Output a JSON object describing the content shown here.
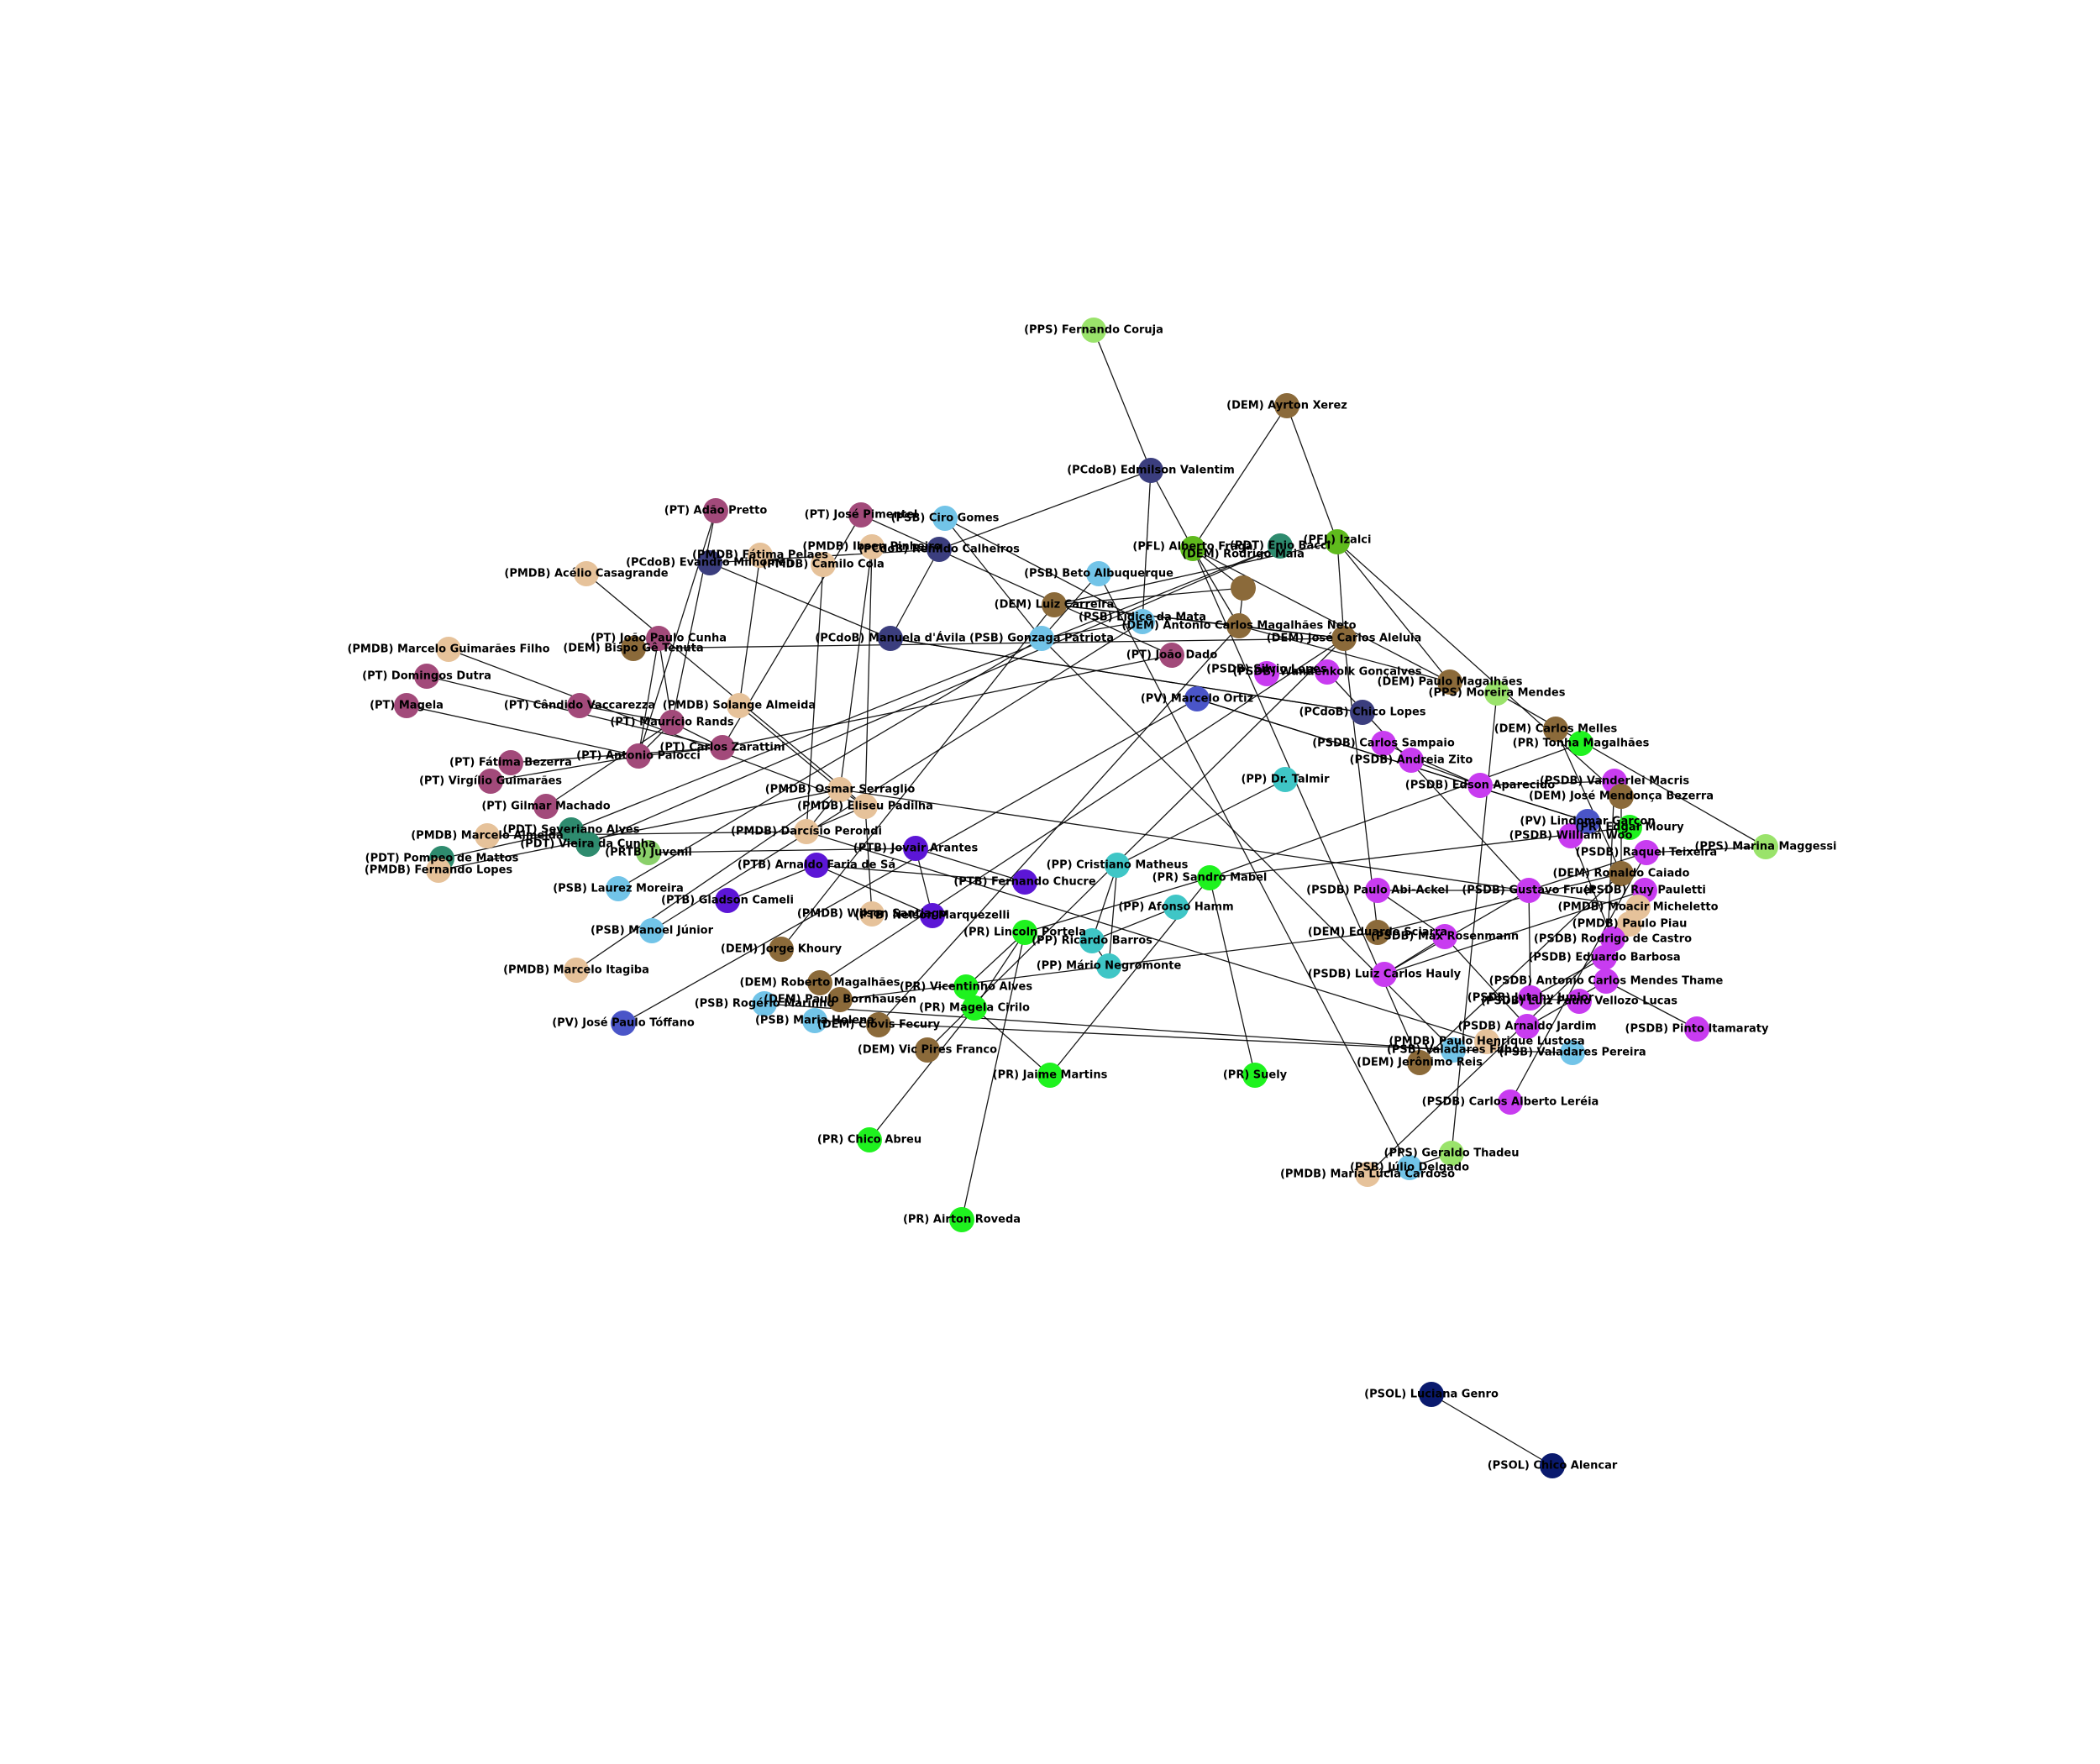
{
  "party_colors": {
    "PT": "#a24a7a",
    "PMDB": "#e6c29a",
    "PSB": "#72c4e8",
    "PCdoB": "#3b3e7e",
    "DEM": "#8b6a3a",
    "PFL": "#5fba1d",
    "PPS": "#9ae36b",
    "PR": "#1ff21f",
    "PSDB": "#c83cf0",
    "PV": "#4a55c8",
    "PDT": "#2e8b6e",
    "PTB": "#5c16d6",
    "PP": "#3fc6c6",
    "PSOL": "#0a1a6e",
    "PRTB": "#8ad06a"
  },
  "nodes": [
    {
      "id": "n01",
      "label": "(PPS) Fernando Coruja",
      "party": "PPS"
    },
    {
      "id": "n02",
      "label": "(DEM) Ayrton Xerez",
      "party": "DEM"
    },
    {
      "id": "n03",
      "label": "(PCdoB) Edmilson Valentim",
      "party": "PCdoB"
    },
    {
      "id": "n04",
      "label": "(PFL) Alberto Fraga",
      "party": "PFL"
    },
    {
      "id": "n05",
      "label": "(PFL) Izalci",
      "party": "PFL"
    },
    {
      "id": "n06",
      "label": "(PDT) Enio Bacci",
      "party": "PDT"
    },
    {
      "id": "n07",
      "label": "(PT) Adão Pretto",
      "party": "PT"
    },
    {
      "id": "n08",
      "label": "(PT) José Pimentel",
      "party": "PT"
    },
    {
      "id": "n09",
      "label": "(PSB) Ciro Gomes",
      "party": "PSB"
    },
    {
      "id": "n10",
      "label": "(PMDB) Ibsen Pinheiro",
      "party": "PMDB"
    },
    {
      "id": "n11",
      "label": "(PCdoB) Renildo Calheiros",
      "party": "PCdoB"
    },
    {
      "id": "n12",
      "label": "(PMDB) Fátima Pelaes",
      "party": "PMDB"
    },
    {
      "id": "n13",
      "label": "(PCdoB) Evandro Milhomen",
      "party": "PCdoB"
    },
    {
      "id": "n14",
      "label": "(PMDB) Camilo Cola",
      "party": "PMDB"
    },
    {
      "id": "n15",
      "label": "(PMDB) Acélio Casagrande",
      "party": "PMDB"
    },
    {
      "id": "n16",
      "label": "(PSB) Beto Albuquerque",
      "party": "PSB"
    },
    {
      "id": "n17",
      "label": "(DEM) Rodrigo Maia",
      "party": "DEM"
    },
    {
      "id": "n18",
      "label": "(PMDB) Marcelo Guimarães Filho",
      "party": "PMDB"
    },
    {
      "id": "n19",
      "label": "(PT) João Paulo Cunha",
      "party": "PT"
    },
    {
      "id": "n20",
      "label": "(DEM) Bispo Gê Tenuta",
      "party": "DEM"
    },
    {
      "id": "n21",
      "label": "(PT) Domingos Dutra",
      "party": "PT"
    },
    {
      "id": "n22",
      "label": "(PT) Magela",
      "party": "PT"
    },
    {
      "id": "n23",
      "label": "(PT) Cândido Vaccarezza",
      "party": "PT"
    },
    {
      "id": "n24",
      "label": "(PT) Fátima Bezerra",
      "party": "PT"
    },
    {
      "id": "n25",
      "label": "(PT) Virgílio Guimarães",
      "party": "PT"
    },
    {
      "id": "n26",
      "label": "(PT) Gilmar Machado",
      "party": "PT"
    },
    {
      "id": "n27",
      "label": "(PMDB) Marcelo Almeida",
      "party": "PMDB"
    },
    {
      "id": "n28",
      "label": "(PDT) Pompeo de Mattos",
      "party": "PDT"
    },
    {
      "id": "n29",
      "label": "(PMDB) Fernando Lopes",
      "party": "PMDB"
    },
    {
      "id": "n30",
      "label": "(PSB) Laurez Moreira",
      "party": "PSB"
    },
    {
      "id": "n31",
      "label": "(PSB) Manoel Júnior",
      "party": "PSB"
    },
    {
      "id": "n32",
      "label": "(PMDB) Marcelo Itagiba",
      "party": "PMDB"
    },
    {
      "id": "n33",
      "label": "(PV) José Paulo Tóffano",
      "party": "PV"
    },
    {
      "id": "n34",
      "label": "(PRTB) Juvenil",
      "party": "PRTB"
    },
    {
      "id": "n35",
      "label": "(PTB) Gladson Cameli",
      "party": "PTB"
    },
    {
      "id": "n36",
      "label": "(PMDB) Wilson Santiago",
      "party": "PMDB"
    },
    {
      "id": "n37",
      "label": "(DEM) Jorge Khoury",
      "party": "DEM"
    },
    {
      "id": "n38",
      "label": "(DEM) Roberto Magalhães",
      "party": "DEM"
    },
    {
      "id": "n39",
      "label": "(PSB) Rogério Marinho",
      "party": "PSB"
    },
    {
      "id": "n40",
      "label": "(PSB) Maria Helena",
      "party": "PSB"
    },
    {
      "id": "n41",
      "label": "(DEM) Clóvis Fecury",
      "party": "DEM"
    },
    {
      "id": "n42",
      "label": "(DEM) Vic Pires Franco",
      "party": "DEM"
    },
    {
      "id": "n43",
      "label": "(PR) Chico Abreu",
      "party": "PR"
    },
    {
      "id": "n44",
      "label": "(PR) Airton Roveda",
      "party": "PR"
    },
    {
      "id": "n45",
      "label": "(DEM) Carlos Melles",
      "party": "DEM"
    },
    {
      "id": "n46",
      "label": "(PR) Tonha Magalhães",
      "party": "PR"
    },
    {
      "id": "n47",
      "label": "(PPS) Marina Maggessi",
      "party": "PPS"
    },
    {
      "id": "n48",
      "label": "(PPS) Moreira Mendes",
      "party": "PPS"
    },
    {
      "id": "n49",
      "label": "(DEM) Paulo Magalhães",
      "party": "DEM"
    },
    {
      "id": "n50",
      "label": "(PCdoB) Chico Lopes",
      "party": "PCdoB"
    },
    {
      "id": "n51",
      "label": "(PSDB) Carlos Sampaio",
      "party": "PSDB"
    },
    {
      "id": "n52",
      "label": "(PSDB) Silvio Lopes",
      "party": "PSDB"
    },
    {
      "id": "n53",
      "label": "(PV) Marcelo Ortiz",
      "party": "PV"
    },
    {
      "id": "n54",
      "label": "(PSDB) Pinto Itamaraty",
      "party": "PSDB"
    },
    {
      "id": "n55",
      "label": "(PSDB) Carlos Alberto Leréia",
      "party": "PSDB"
    },
    {
      "id": "n56",
      "label": "(PPS) Geraldo Thadeu",
      "party": "PPS"
    },
    {
      "id": "n57",
      "label": "(PSB) Júlio Delgado",
      "party": "PSB"
    },
    {
      "id": "n58",
      "label": "(PMDB) Maria Lúcia Cardoso",
      "party": "PMDB"
    },
    {
      "id": "n59",
      "label": "(PSB) Valadares Pereira",
      "party": "PSB"
    },
    {
      "id": "n60",
      "label": "(PR) Suely",
      "party": "PR"
    },
    {
      "id": "n61",
      "label": "(DEM) Jerônimo Reis",
      "party": "DEM"
    },
    {
      "id": "n62",
      "label": "(PSOL) Luciana Genro",
      "party": "PSOL"
    },
    {
      "id": "n63",
      "label": "(PSOL) Chico Alencar",
      "party": "PSOL"
    },
    {
      "id": "n64",
      "label": "(PP) Afonso Hamm",
      "party": "PP"
    },
    {
      "id": "n65",
      "label": "(PSDB) William Woo",
      "party": "PSDB"
    },
    {
      "id": "n66",
      "label": "(PMDB) Paulo Piau",
      "party": "PMDB"
    },
    {
      "id": "n67",
      "label": "(PSDB) Rodrigo de Castro",
      "party": "PSDB"
    },
    {
      "id": "n68",
      "label": "(DEM) Paulo Bornhausen",
      "party": "DEM"
    },
    {
      "id": "n69",
      "label": "(PR) Vicentinho Alves",
      "party": "PR"
    },
    {
      "id": "n70",
      "label": "(PP) Dr. Talmir",
      "party": "PP"
    },
    {
      "id": "n71",
      "label": "(PSDB) Andreia Zito",
      "party": "PSDB"
    },
    {
      "id": "n72",
      "label": "(PSDB) Edson Aparecido",
      "party": "PSDB"
    },
    {
      "id": "n73",
      "label": "(PSDB) Vanderlei Macris",
      "party": "PSDB"
    },
    {
      "id": "n74",
      "label": "(PV) Lindomar Garçon",
      "party": "PV"
    },
    {
      "id": "n75",
      "label": "(PR) Edgar Moury",
      "party": "PR"
    },
    {
      "id": "n76",
      "label": "(DEM) José Mendonça Bezerra",
      "party": "DEM"
    },
    {
      "id": "n77",
      "label": "(PSDB) Raquel Teixeira",
      "party": "PSDB"
    },
    {
      "id": "n78",
      "label": "(DEM) Ronaldo Caiado",
      "party": "DEM"
    },
    {
      "id": "n79",
      "label": "(PSDB) Ruy Pauletti",
      "party": "PSDB"
    },
    {
      "id": "n80",
      "label": "(PMDB) Moacir Micheletto",
      "party": "PMDB"
    },
    {
      "id": "n81",
      "label": "(PSDB) Eduardo Barbosa",
      "party": "PSDB"
    },
    {
      "id": "n82",
      "label": "(PSDB) Antonio Carlos Mendes Thame",
      "party": "PSDB"
    },
    {
      "id": "n83",
      "label": "(PSDB) Luiz Paulo Vellozo Lucas",
      "party": "PSDB"
    },
    {
      "id": "n84",
      "label": "(PSDB) Arnaldo Jardim",
      "party": "PSDB"
    },
    {
      "id": "n85",
      "label": "(PSDB) Jutahy Junior",
      "party": "PSDB"
    },
    {
      "id": "n86",
      "label": "(PMDB) Paulo Henrique Lustosa",
      "party": "PMDB"
    },
    {
      "id": "n87",
      "label": "(PSB) Valadares Filho",
      "party": "PSB"
    },
    {
      "id": "n88",
      "label": "(PSDB) Max Rosenmann",
      "party": "PSDB"
    },
    {
      "id": "n89",
      "label": "(DEM) Eduardo Sciarra",
      "party": "DEM"
    },
    {
      "id": "n90",
      "label": "(PSDB) Luiz Carlos Hauly",
      "party": "PSDB"
    },
    {
      "id": "n91",
      "label": "(PT) Antonio Palocci",
      "party": "PT"
    },
    {
      "id": "n92",
      "label": "(PT) Carlos Zarattini",
      "party": "PT"
    },
    {
      "id": "n93",
      "label": "(PT) Maurício Rands",
      "party": "PT"
    },
    {
      "id": "n94",
      "label": "(PMDB) Solange Almeida",
      "party": "PMDB"
    },
    {
      "id": "n95",
      "label": "(PDT) Severiano Alves",
      "party": "PDT"
    },
    {
      "id": "n96",
      "label": "(PTB) Arnaldo Faria de Sá",
      "party": "PTB"
    },
    {
      "id": "n97",
      "label": "(PR) Sandro Mabel",
      "party": "PR"
    },
    {
      "id": "n98",
      "label": "(PP) Cristiano Matheus",
      "party": "PP"
    },
    {
      "id": "n99",
      "label": "(PSB) Lídice da Mata",
      "party": "PSB"
    },
    {
      "id": "n100",
      "label": "(DEM) Antonio Carlos Magalhães Neto",
      "party": "DEM"
    },
    {
      "id": "n101",
      "label": "(PSDB) Wandenkolk Gonçalves",
      "party": "PSDB"
    },
    {
      "id": "n102",
      "label": "(DEM) Luiz Carreira",
      "party": "DEM"
    },
    {
      "id": "n103",
      "label": "(PT) João Dado",
      "party": "PT"
    },
    {
      "id": "n104",
      "label": "(PMDB) Eliseu Padilha",
      "party": "PMDB"
    },
    {
      "id": "n105",
      "label": "(PTB) Nelson Marquezelli",
      "party": "PTB"
    },
    {
      "id": "n106",
      "label": "(PR) Lincoln Portela",
      "party": "PR"
    },
    {
      "id": "n107",
      "label": "(PP) Ricardo Barros",
      "party": "PP"
    },
    {
      "id": "n108",
      "label": "(PTB) Jovair Arantes",
      "party": "PTB"
    },
    {
      "id": "n109",
      "label": "(PMDB) Darcísio Perondi",
      "party": "PMDB"
    },
    {
      "id": "n110",
      "label": "(PR) Magela Cirilo",
      "party": "PR"
    },
    {
      "id": "n111",
      "label": "(PSB) Gonzaga Patriota",
      "party": "PSB"
    },
    {
      "id": "n112",
      "label": "(PCdoB) Manuela d'Ávila",
      "party": "PCdoB"
    },
    {
      "id": "n113",
      "label": "(PDT) Vieira da Cunha",
      "party": "PDT"
    },
    {
      "id": "n114",
      "label": "(PTB) Fernando Chucre",
      "party": "PTB"
    },
    {
      "id": "n115",
      "label": "(PSDB) Paulo Abi-Ackel",
      "party": "PSDB"
    },
    {
      "id": "n116",
      "label": "(PR) Jaime Martins",
      "party": "PR"
    },
    {
      "id": "n117",
      "label": "(PP) Mário Negromonte",
      "party": "PP"
    },
    {
      "id": "n118",
      "label": "(PMDB) Osmar Serraglio",
      "party": "PMDB"
    },
    {
      "id": "n119",
      "label": "(DEM) José Carlos Aleluia",
      "party": "DEM"
    },
    {
      "id": "n120",
      "label": "(PSDB) Gustavo Fruet",
      "party": "PSDB"
    }
  ],
  "edges": [
    [
      "n01",
      "n03"
    ],
    [
      "n03",
      "n04"
    ],
    [
      "n03",
      "n11"
    ],
    [
      "n03",
      "n99"
    ],
    [
      "n02",
      "n04"
    ],
    [
      "n02",
      "n05"
    ],
    [
      "n04",
      "n17"
    ],
    [
      "n04",
      "n100"
    ],
    [
      "n04",
      "n49"
    ],
    [
      "n04",
      "n61"
    ],
    [
      "n05",
      "n102"
    ],
    [
      "n05",
      "n49"
    ],
    [
      "n05",
      "n76"
    ],
    [
      "n05",
      "n119"
    ],
    [
      "n06",
      "n113"
    ],
    [
      "n06",
      "n95"
    ],
    [
      "n07",
      "n93"
    ],
    [
      "n07",
      "n91"
    ],
    [
      "n08",
      "n92"
    ],
    [
      "n08",
      "n103"
    ],
    [
      "n09",
      "n111"
    ],
    [
      "n09",
      "n99"
    ],
    [
      "n10",
      "n104"
    ],
    [
      "n10",
      "n118"
    ],
    [
      "n11",
      "n112"
    ],
    [
      "n11",
      "n13"
    ],
    [
      "n12",
      "n94"
    ],
    [
      "n13",
      "n112"
    ],
    [
      "n14",
      "n109"
    ],
    [
      "n15",
      "n104"
    ],
    [
      "n16",
      "n111"
    ],
    [
      "n16",
      "n57"
    ],
    [
      "n17",
      "n102"
    ],
    [
      "n17",
      "n100"
    ],
    [
      "n18",
      "n104"
    ],
    [
      "n19",
      "n91"
    ],
    [
      "n19",
      "n93"
    ],
    [
      "n20",
      "n119"
    ],
    [
      "n21",
      "n92"
    ],
    [
      "n22",
      "n91"
    ],
    [
      "n23",
      "n93"
    ],
    [
      "n24",
      "n92"
    ],
    [
      "n25",
      "n91"
    ],
    [
      "n26",
      "n93"
    ],
    [
      "n27",
      "n109"
    ],
    [
      "n28",
      "n95"
    ],
    [
      "n29",
      "n118"
    ],
    [
      "n30",
      "n111"
    ],
    [
      "n31",
      "n99"
    ],
    [
      "n32",
      "n118"
    ],
    [
      "n33",
      "n53"
    ],
    [
      "n34",
      "n108"
    ],
    [
      "n35",
      "n96"
    ],
    [
      "n36",
      "n104"
    ],
    [
      "n37",
      "n102"
    ],
    [
      "n38",
      "n119"
    ],
    [
      "n39",
      "n87"
    ],
    [
      "n40",
      "n87"
    ],
    [
      "n41",
      "n100"
    ],
    [
      "n42",
      "n119"
    ],
    [
      "n43",
      "n110"
    ],
    [
      "n44",
      "n106"
    ],
    [
      "n45",
      "n78"
    ],
    [
      "n46",
      "n97"
    ],
    [
      "n47",
      "n48"
    ],
    [
      "n47",
      "n77"
    ],
    [
      "n48",
      "n56"
    ],
    [
      "n49",
      "n100"
    ],
    [
      "n50",
      "n112"
    ],
    [
      "n51",
      "n72"
    ],
    [
      "n52",
      "n101"
    ],
    [
      "n53",
      "n74"
    ],
    [
      "n54",
      "n82"
    ],
    [
      "n55",
      "n77"
    ],
    [
      "n56",
      "n57"
    ],
    [
      "n57",
      "n58"
    ],
    [
      "n58",
      "n66"
    ],
    [
      "n59",
      "n87"
    ],
    [
      "n60",
      "n97"
    ],
    [
      "n61",
      "n78"
    ],
    [
      "n62",
      "n63"
    ],
    [
      "n64",
      "n107"
    ],
    [
      "n65",
      "n67"
    ],
    [
      "n66",
      "n80"
    ],
    [
      "n67",
      "n81"
    ],
    [
      "n68",
      "n89"
    ],
    [
      "n69",
      "n106"
    ],
    [
      "n70",
      "n98"
    ],
    [
      "n71",
      "n72"
    ],
    [
      "n72",
      "n73"
    ],
    [
      "n73",
      "n82"
    ],
    [
      "n74",
      "n53"
    ],
    [
      "n75",
      "n97"
    ],
    [
      "n76",
      "n78"
    ],
    [
      "n77",
      "n120"
    ],
    [
      "n78",
      "n89"
    ],
    [
      "n79",
      "n90"
    ],
    [
      "n80",
      "n118"
    ],
    [
      "n81",
      "n85"
    ],
    [
      "n82",
      "n84"
    ],
    [
      "n83",
      "n85"
    ],
    [
      "n84",
      "n88"
    ],
    [
      "n85",
      "n120"
    ],
    [
      "n86",
      "n109"
    ],
    [
      "n87",
      "n111"
    ],
    [
      "n88",
      "n90"
    ],
    [
      "n89",
      "n119"
    ],
    [
      "n90",
      "n120"
    ],
    [
      "n91",
      "n92"
    ],
    [
      "n92",
      "n93"
    ],
    [
      "n93",
      "n91"
    ],
    [
      "n94",
      "n118"
    ],
    [
      "n95",
      "n113"
    ],
    [
      "n96",
      "n105"
    ],
    [
      "n97",
      "n106"
    ],
    [
      "n98",
      "n107"
    ],
    [
      "n99",
      "n111"
    ],
    [
      "n100",
      "n102"
    ],
    [
      "n101",
      "n120"
    ],
    [
      "n102",
      "n119"
    ],
    [
      "n103",
      "n92"
    ],
    [
      "n104",
      "n109"
    ],
    [
      "n105",
      "n108"
    ],
    [
      "n106",
      "n110"
    ],
    [
      "n107",
      "n117"
    ],
    [
      "n108",
      "n114"
    ],
    [
      "n109",
      "n118"
    ],
    [
      "n110",
      "n116"
    ],
    [
      "n112",
      "n50"
    ],
    [
      "n113",
      "n95"
    ],
    [
      "n114",
      "n96"
    ],
    [
      "n115",
      "n88"
    ],
    [
      "n116",
      "n97"
    ],
    [
      "n117",
      "n98"
    ],
    [
      "n118",
      "n104"
    ],
    [
      "n119",
      "n100"
    ],
    [
      "n120",
      "n115"
    ]
  ]
}
